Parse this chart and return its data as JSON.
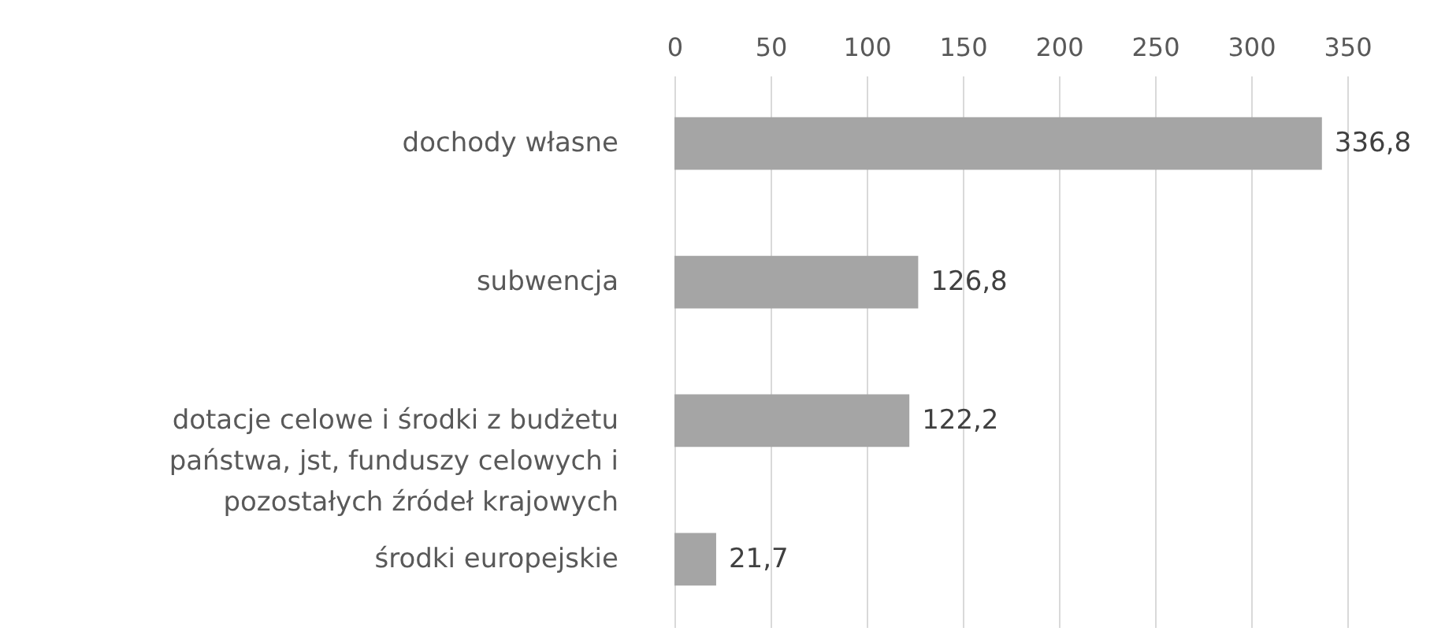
{
  "chart_data": {
    "type": "bar",
    "orientation": "horizontal",
    "categories": [
      "dochody własne",
      "subwencja",
      "dotacje celowe i środki z budżetu państwa, jst, funduszy celowych i pozostałych źródeł krajowych",
      "środki europejskie"
    ],
    "values": [
      336.8,
      126.8,
      122.2,
      21.7
    ],
    "value_labels": [
      "336,8",
      "126,8",
      "122,2",
      "21,7"
    ],
    "color": "#a5a5a5",
    "xlim": [
      0,
      350
    ],
    "xticks": [
      0,
      50,
      100,
      150,
      200,
      250,
      300,
      350
    ],
    "grid": "x"
  }
}
